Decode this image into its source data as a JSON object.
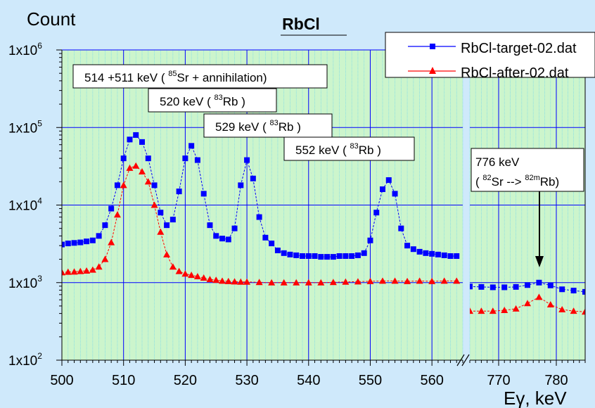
{
  "chart_data": {
    "type": "scatter",
    "title": "RbCl",
    "ylabel": "Count",
    "xlabel_prefix": "E",
    "xlabel_symbol": "γ",
    "xlabel_unit": ", keV",
    "y_scale": "log",
    "ylim": [
      100,
      1000000
    ],
    "y_ticks": [
      {
        "value": 100,
        "base": "1x10",
        "exp": "2"
      },
      {
        "value": 1000,
        "base": "1x10",
        "exp": "3"
      },
      {
        "value": 10000,
        "base": "1x10",
        "exp": "4"
      },
      {
        "value": 100000,
        "base": "1x10",
        "exp": "5"
      },
      {
        "value": 1000000,
        "base": "1x10",
        "exp": "6"
      }
    ],
    "broken_x_axis": true,
    "x_segments": [
      {
        "range": [
          500,
          565
        ],
        "ticks": [
          "500",
          "510",
          "520",
          "530",
          "540",
          "550",
          "560"
        ]
      },
      {
        "range": [
          765,
          785
        ],
        "ticks": [
          "770",
          "780"
        ]
      }
    ],
    "grid": true,
    "legend_position": "top-right",
    "series": [
      {
        "name": "RbCl-target-02.dat",
        "color": "#0000ff",
        "marker": "square",
        "segment1": [
          [
            500,
            3100
          ],
          [
            501,
            3200
          ],
          [
            502,
            3250
          ],
          [
            503,
            3300
          ],
          [
            504,
            3400
          ],
          [
            505,
            3500
          ],
          [
            506,
            4000
          ],
          [
            507,
            5500
          ],
          [
            508,
            9000
          ],
          [
            509,
            18000
          ],
          [
            510,
            40000
          ],
          [
            511,
            70000
          ],
          [
            512,
            80000
          ],
          [
            513,
            65000
          ],
          [
            514,
            40000
          ],
          [
            515,
            18000
          ],
          [
            516,
            8000
          ],
          [
            517,
            5500
          ],
          [
            518,
            6500
          ],
          [
            519,
            15000
          ],
          [
            520,
            40000
          ],
          [
            521,
            58000
          ],
          [
            522,
            38000
          ],
          [
            523,
            14000
          ],
          [
            524,
            5500
          ],
          [
            525,
            4000
          ],
          [
            526,
            3700
          ],
          [
            527,
            3600
          ],
          [
            528,
            5000
          ],
          [
            529,
            18000
          ],
          [
            530,
            38000
          ],
          [
            531,
            22000
          ],
          [
            532,
            7000
          ],
          [
            533,
            3800
          ],
          [
            534,
            3200
          ],
          [
            535,
            2600
          ],
          [
            536,
            2400
          ],
          [
            537,
            2300
          ],
          [
            538,
            2250
          ],
          [
            539,
            2200
          ],
          [
            540,
            2200
          ],
          [
            541,
            2200
          ],
          [
            542,
            2150
          ],
          [
            543,
            2150
          ],
          [
            544,
            2150
          ],
          [
            545,
            2200
          ],
          [
            546,
            2200
          ],
          [
            547,
            2200
          ],
          [
            548,
            2250
          ],
          [
            549,
            2400
          ],
          [
            550,
            3500
          ],
          [
            551,
            8000
          ],
          [
            552,
            16000
          ],
          [
            553,
            21000
          ],
          [
            554,
            14000
          ],
          [
            555,
            5000
          ],
          [
            556,
            3000
          ],
          [
            557,
            2700
          ],
          [
            558,
            2500
          ],
          [
            559,
            2400
          ],
          [
            560,
            2350
          ],
          [
            561,
            2300
          ],
          [
            562,
            2250
          ],
          [
            563,
            2200
          ],
          [
            564,
            2200
          ]
        ],
        "segment2": [
          [
            765,
            890
          ],
          [
            767,
            880
          ],
          [
            769,
            870
          ],
          [
            771,
            870
          ],
          [
            773,
            880
          ],
          [
            775,
            930
          ],
          [
            777,
            1000
          ],
          [
            779,
            920
          ],
          [
            781,
            820
          ],
          [
            783,
            790
          ],
          [
            785,
            760
          ]
        ]
      },
      {
        "name": "RbCl-after-02.dat",
        "color": "#ff0000",
        "marker": "triangle",
        "segment1": [
          [
            500,
            1350
          ],
          [
            501,
            1370
          ],
          [
            502,
            1380
          ],
          [
            503,
            1400
          ],
          [
            504,
            1420
          ],
          [
            505,
            1460
          ],
          [
            506,
            1600
          ],
          [
            507,
            2000
          ],
          [
            508,
            3300
          ],
          [
            509,
            7500
          ],
          [
            510,
            18000
          ],
          [
            511,
            30000
          ],
          [
            512,
            32000
          ],
          [
            513,
            27000
          ],
          [
            514,
            20000
          ],
          [
            515,
            10000
          ],
          [
            516,
            4500
          ],
          [
            517,
            2300
          ],
          [
            518,
            1600
          ],
          [
            519,
            1400
          ],
          [
            520,
            1300
          ],
          [
            521,
            1250
          ],
          [
            522,
            1200
          ],
          [
            523,
            1150
          ],
          [
            524,
            1100
          ],
          [
            525,
            1080
          ],
          [
            526,
            1050
          ],
          [
            527,
            1040
          ],
          [
            528,
            1030
          ],
          [
            529,
            1020
          ],
          [
            530,
            1020
          ],
          [
            532,
            1010
          ],
          [
            534,
            1000
          ],
          [
            536,
            1000
          ],
          [
            538,
            1000
          ],
          [
            540,
            1000
          ],
          [
            542,
            1000
          ],
          [
            544,
            1010
          ],
          [
            546,
            1020
          ],
          [
            548,
            1030
          ],
          [
            550,
            1040
          ],
          [
            552,
            1050
          ],
          [
            554,
            1050
          ],
          [
            556,
            1040
          ],
          [
            558,
            1050
          ],
          [
            560,
            1040
          ],
          [
            562,
            1050
          ],
          [
            564,
            1050
          ]
        ],
        "segment2": [
          [
            765,
            430
          ],
          [
            767,
            430
          ],
          [
            769,
            430
          ],
          [
            771,
            440
          ],
          [
            773,
            460
          ],
          [
            775,
            540
          ],
          [
            777,
            650
          ],
          [
            779,
            520
          ],
          [
            781,
            450
          ],
          [
            783,
            430
          ],
          [
            785,
            420
          ]
        ]
      }
    ],
    "annotations": [
      {
        "before": "514 +511 keV ( ",
        "sup": "85",
        "after": "Sr + annihilation)"
      },
      {
        "before": "520 keV ( ",
        "sup": "83",
        "after": "Rb )"
      },
      {
        "before": "529 keV ( ",
        "sup": "83",
        "after": "Rb )"
      },
      {
        "before": "552 keV ( ",
        "sup": "83",
        "after": "Rb )"
      }
    ],
    "callout": {
      "line1": "776 keV",
      "line2_a": "( ",
      "sup1": "82",
      "line2_b": "Sr --> ",
      "sup2": "82m",
      "line2_c": "Rb)"
    }
  }
}
